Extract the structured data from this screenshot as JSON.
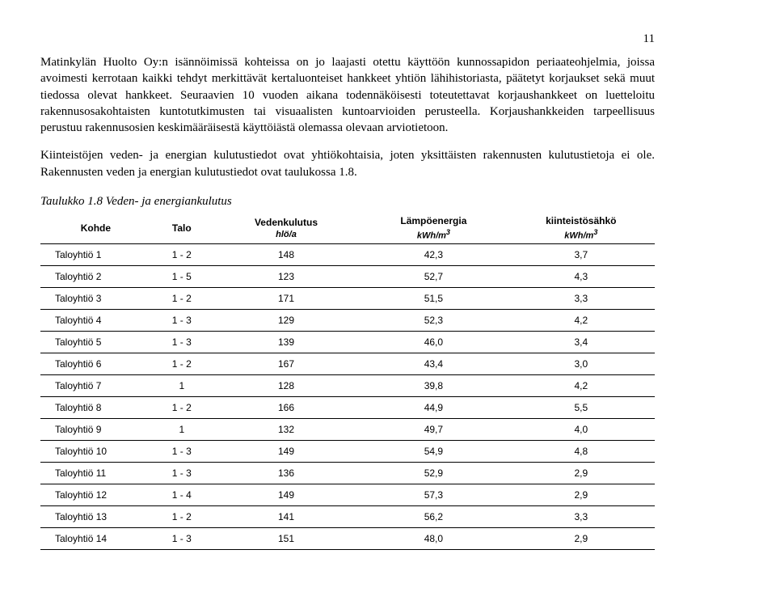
{
  "page_number": "11",
  "paragraph_1": "Matinkylän Huolto Oy:n isännöimissä kohteissa on jo laajasti otettu käyttöön kunnossapidon periaateohjelmia, joissa avoimesti kerrotaan kaikki tehdyt merkittävät kertaluonteiset hankkeet yhtiön lähihistoriasta, päätetyt korjaukset sekä muut tiedossa olevat hankkeet. Seuraavien 10 vuoden aikana todennäköisesti toteutettavat korjaushankkeet on luetteloitu rakennusosakohtaisten kuntotutkimusten tai visuaalisten kuntoarvioiden perusteella. Korjaushankkeiden tarpeellisuus perustuu rakennusosien keskimääräisestä käyttöiästä olemassa olevaan arviotietoon.",
  "paragraph_2": "Kiinteistöjen veden- ja energian kulutustiedot ovat yhtiökohtaisia, joten yksittäisten rakennusten kulutustietoja ei ole. Rakennusten veden ja energian kulutustiedot ovat taulukossa 1.8.",
  "table_title": "Taulukko 1.8 Veden- ja energiankulutus",
  "columns": {
    "kohde": "Kohde",
    "talo": "Talo",
    "veden": "Vedenkulutus",
    "veden_unit": "hlö/a",
    "lampo": "Lämpöenergia",
    "lampo_unit_prefix": "kWh/m",
    "sahko": "kiinteistösähkö",
    "sahko_unit_prefix": "kWh/m"
  },
  "rows": [
    {
      "kohde": "Taloyhtiö 1",
      "talo": "1 - 2",
      "veden": "148",
      "lampo": "42,3",
      "sahko": "3,7"
    },
    {
      "kohde": "Taloyhtiö 2",
      "talo": "1 - 5",
      "veden": "123",
      "lampo": "52,7",
      "sahko": "4,3"
    },
    {
      "kohde": "Taloyhtiö 3",
      "talo": "1 - 2",
      "veden": "171",
      "lampo": "51,5",
      "sahko": "3,3"
    },
    {
      "kohde": "Taloyhtiö 4",
      "talo": "1 - 3",
      "veden": "129",
      "lampo": "52,3",
      "sahko": "4,2"
    },
    {
      "kohde": "Taloyhtiö 5",
      "talo": "1 - 3",
      "veden": "139",
      "lampo": "46,0",
      "sahko": "3,4"
    },
    {
      "kohde": "Taloyhtiö 6",
      "talo": "1 - 2",
      "veden": "167",
      "lampo": "43,4",
      "sahko": "3,0"
    },
    {
      "kohde": "Taloyhtiö 7",
      "talo": "1",
      "veden": "128",
      "lampo": "39,8",
      "sahko": "4,2"
    },
    {
      "kohde": "Taloyhtiö 8",
      "talo": "1 - 2",
      "veden": "166",
      "lampo": "44,9",
      "sahko": "5,5"
    },
    {
      "kohde": "Taloyhtiö 9",
      "talo": "1",
      "veden": "132",
      "lampo": "49,7",
      "sahko": "4,0"
    },
    {
      "kohde": "Taloyhtiö 10",
      "talo": "1 - 3",
      "veden": "149",
      "lampo": "54,9",
      "sahko": "4,8"
    },
    {
      "kohde": "Taloyhtiö 11",
      "talo": "1 - 3",
      "veden": "136",
      "lampo": "52,9",
      "sahko": "2,9"
    },
    {
      "kohde": "Taloyhtiö 12",
      "talo": "1 - 4",
      "veden": "149",
      "lampo": "57,3",
      "sahko": "2,9"
    },
    {
      "kohde": "Taloyhtiö 13",
      "talo": "1 - 2",
      "veden": "141",
      "lampo": "56,2",
      "sahko": "3,3"
    },
    {
      "kohde": "Taloyhtiö 14",
      "talo": "1 - 3",
      "veden": "151",
      "lampo": "48,0",
      "sahko": "2,9"
    }
  ]
}
